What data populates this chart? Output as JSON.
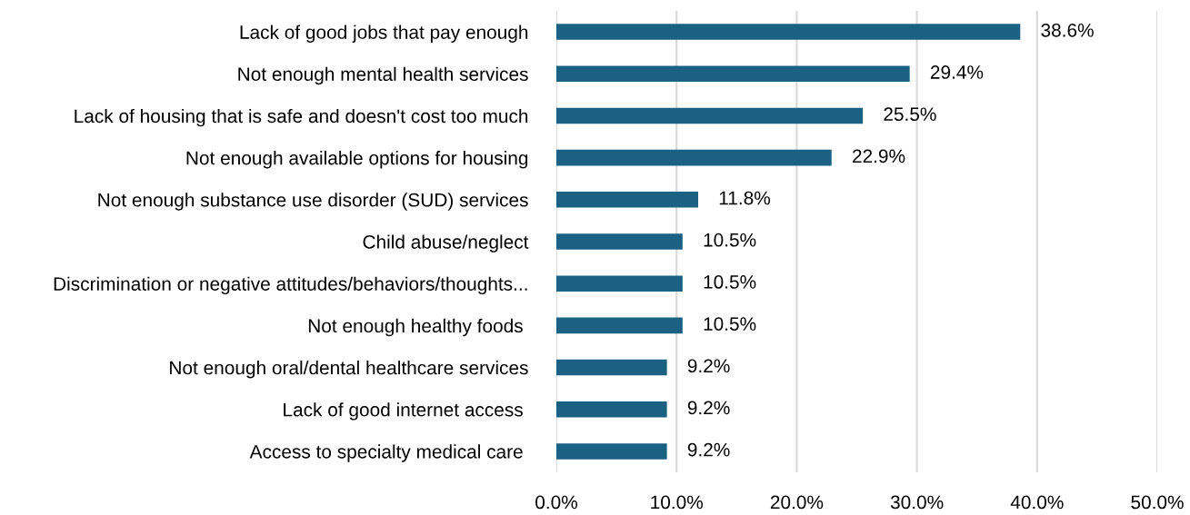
{
  "chart_data": {
    "type": "bar",
    "orientation": "horizontal",
    "categories": [
      "Lack of good jobs that pay enough",
      "Not enough mental health services",
      "Lack of housing that is safe and doesn't cost too much",
      "Not enough available options for housing",
      "Not enough substance use disorder (SUD) services",
      "Child abuse/neglect",
      "Discrimination or negative attitudes/behaviors/thoughts...",
      "Not enough healthy foods ",
      "Not enough oral/dental healthcare services",
      "Lack of good internet access ",
      "Access to specialty medical care "
    ],
    "values": [
      38.6,
      29.4,
      25.5,
      22.9,
      11.8,
      10.5,
      10.5,
      10.5,
      9.2,
      9.2,
      9.2
    ],
    "value_labels": [
      "38.6%",
      "29.4%",
      "25.5%",
      "22.9%",
      "11.8%",
      "10.5%",
      "10.5%",
      "10.5%",
      "9.2%",
      "9.2%",
      "9.2%"
    ],
    "color": "#1b6183",
    "xlim": [
      0,
      50
    ],
    "xticks": [
      {
        "value": 0,
        "label": "0.0%"
      },
      {
        "value": 10,
        "label": "10.0%"
      },
      {
        "value": 20,
        "label": "20.0%"
      },
      {
        "value": 30,
        "label": "30.0%"
      },
      {
        "value": 40,
        "label": "40.0%"
      },
      {
        "value": 50,
        "label": "50.0%"
      }
    ],
    "grid": "x"
  }
}
